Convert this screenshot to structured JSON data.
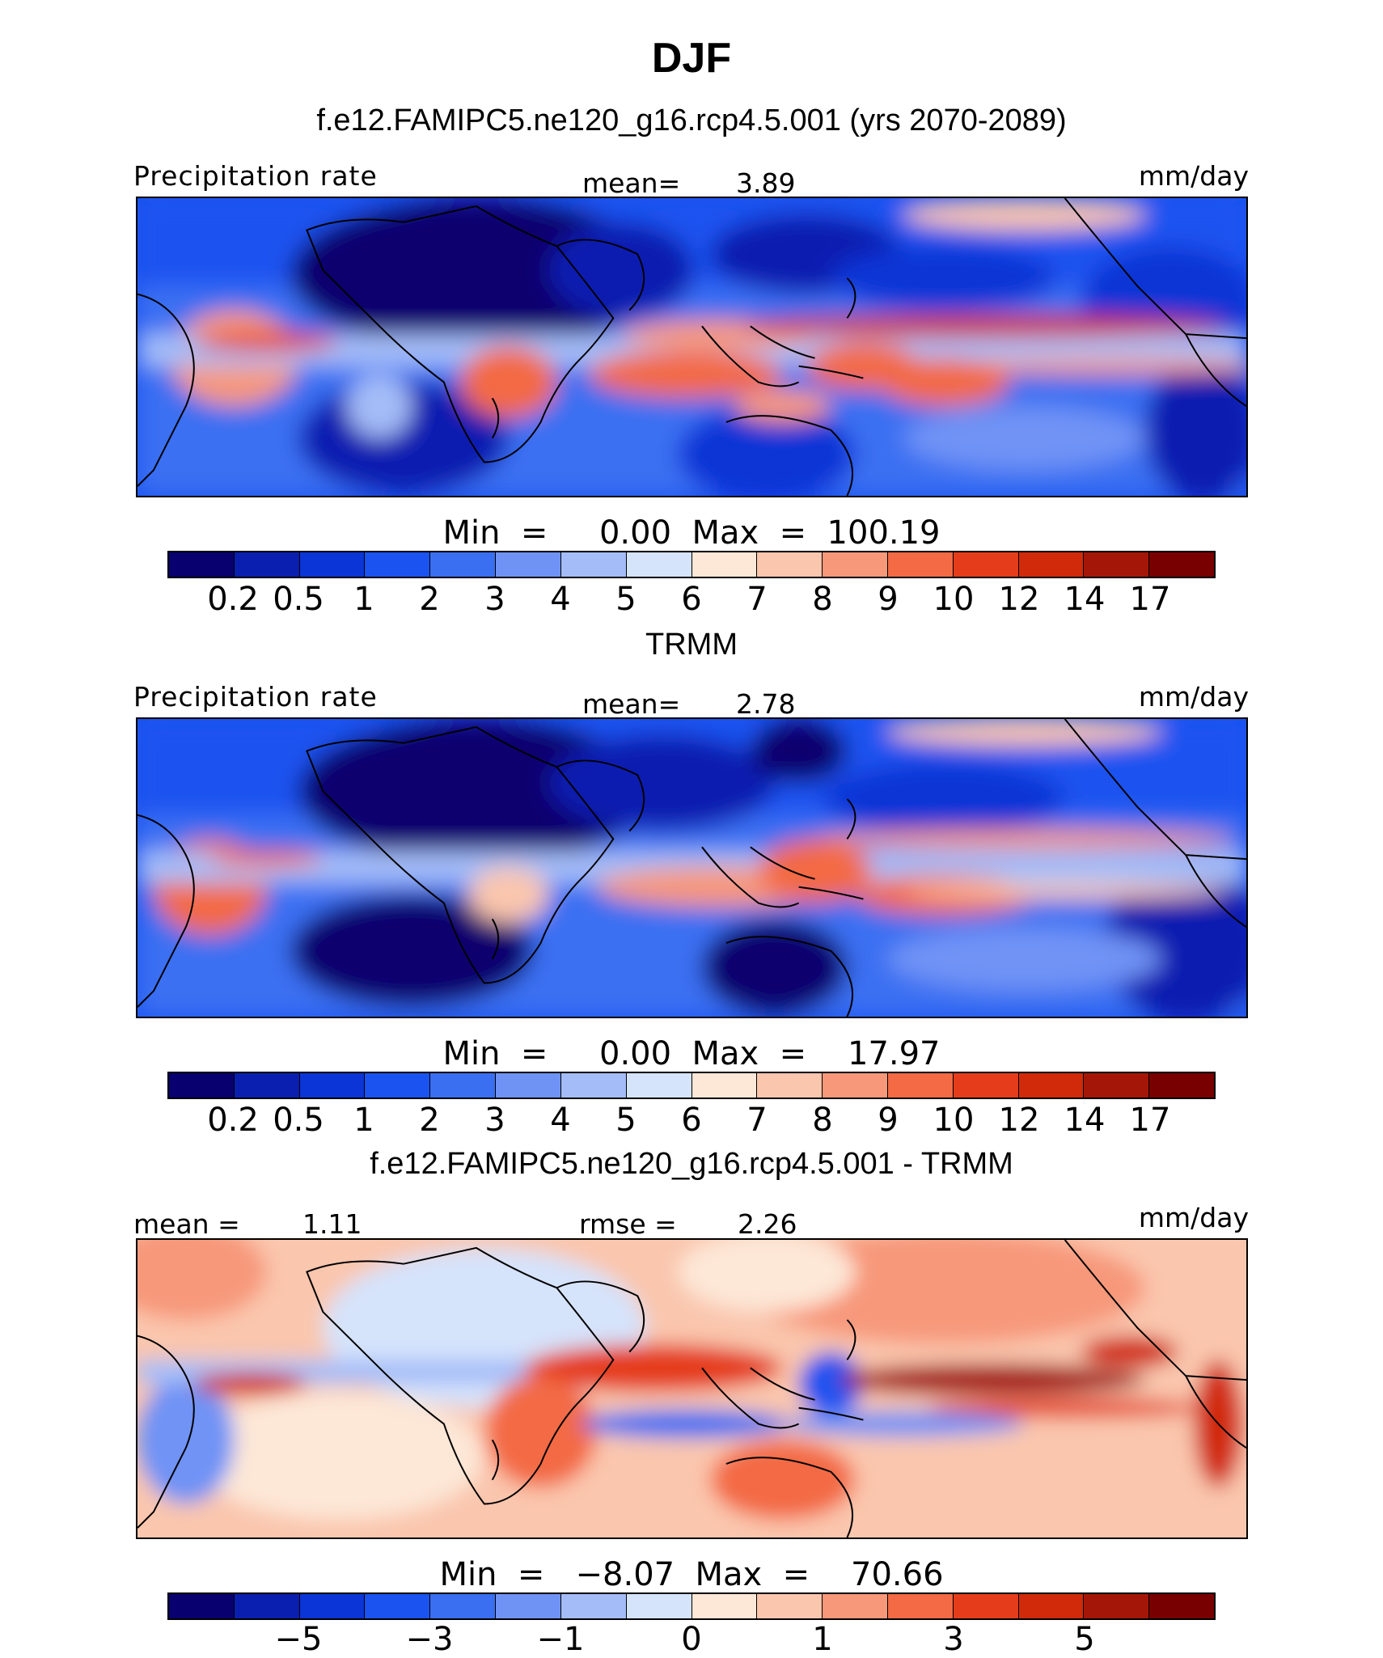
{
  "title": "DJF",
  "colors": {
    "seq": [
      "#08006e",
      "#0a1fb0",
      "#0b35d6",
      "#1a53f0",
      "#3a6ff2",
      "#6f93f5",
      "#a4bdf8",
      "#d5e3fb",
      "#fde7d7",
      "#fac6ad",
      "#f7987a",
      "#f36a45",
      "#e53d1b",
      "#d12a0a",
      "#a41708",
      "#780000"
    ],
    "land_outline": "#000000"
  },
  "panels": [
    {
      "subtitle": "f.e12.FAMIPC5.ne120_g16.rcp4.5.001 (yrs 2070-2089)",
      "left_label": "Precipitation rate",
      "center_label": "mean=",
      "center_value": "3.89",
      "right_label": "mm/day",
      "minmax": "Min  =     0.00  Max  =  100.19",
      "ticks": [
        "0.2",
        "0.5",
        "1",
        "2",
        "3",
        "4",
        "5",
        "6",
        "7",
        "8",
        "9",
        "10",
        "12",
        "14",
        "17"
      ]
    },
    {
      "subtitle": "TRMM",
      "left_label": "Precipitation rate",
      "center_label": "mean=",
      "center_value": "2.78",
      "right_label": "mm/day",
      "minmax": "Min  =     0.00  Max  =    17.97",
      "ticks": [
        "0.2",
        "0.5",
        "1",
        "2",
        "3",
        "4",
        "5",
        "6",
        "7",
        "8",
        "9",
        "10",
        "12",
        "14",
        "17"
      ]
    },
    {
      "subtitle": "f.e12.FAMIPC5.ne120_g16.rcp4.5.001 - TRMM",
      "left_label": "mean  =",
      "left_value": "1.11",
      "center_label": "rmse  =",
      "center_value": "2.26",
      "right_label": "mm/day",
      "minmax": "Min  =   −8.07  Max  =    70.66",
      "ticks": [
        "−5",
        "−3",
        "−1",
        "0",
        "1",
        "3",
        "5"
      ]
    }
  ]
}
